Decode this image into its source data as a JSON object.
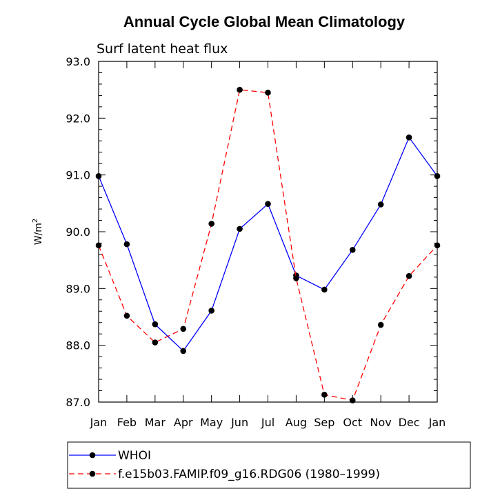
{
  "chart_data": {
    "type": "line",
    "title": "Annual Cycle Global Mean Climatology",
    "subtitle": "Surf latent heat flux",
    "ylabel_main": "W/m",
    "ylabel_sup": "2",
    "xlabel": "",
    "categories": [
      "Jan",
      "Feb",
      "Mar",
      "Apr",
      "May",
      "Jun",
      "Jul",
      "Aug",
      "Sep",
      "Oct",
      "Nov",
      "Dec",
      "Jan"
    ],
    "ylim": [
      87.0,
      93.0
    ],
    "yticks": [
      "87.0",
      "88.0",
      "89.0",
      "90.0",
      "91.0",
      "92.0",
      "93.0"
    ],
    "ytick_values": [
      87.0,
      88.0,
      89.0,
      90.0,
      91.0,
      92.0,
      93.0
    ],
    "grid": false,
    "legend_position": "bottom",
    "series": [
      {
        "name": "WHOI",
        "color": "#0000ff",
        "style": "solid",
        "values": [
          90.98,
          89.78,
          88.37,
          87.9,
          88.61,
          90.05,
          90.49,
          89.23,
          88.98,
          89.68,
          90.48,
          91.66,
          90.98
        ]
      },
      {
        "name": "f.e15b03.FAMIP.f09_g16.RDG06 (1980–1999)",
        "color": "#ff0000",
        "style": "dashed",
        "values": [
          89.76,
          88.52,
          88.05,
          88.29,
          90.14,
          92.5,
          92.45,
          89.18,
          87.13,
          87.03,
          88.36,
          89.22,
          89.76
        ]
      }
    ]
  }
}
